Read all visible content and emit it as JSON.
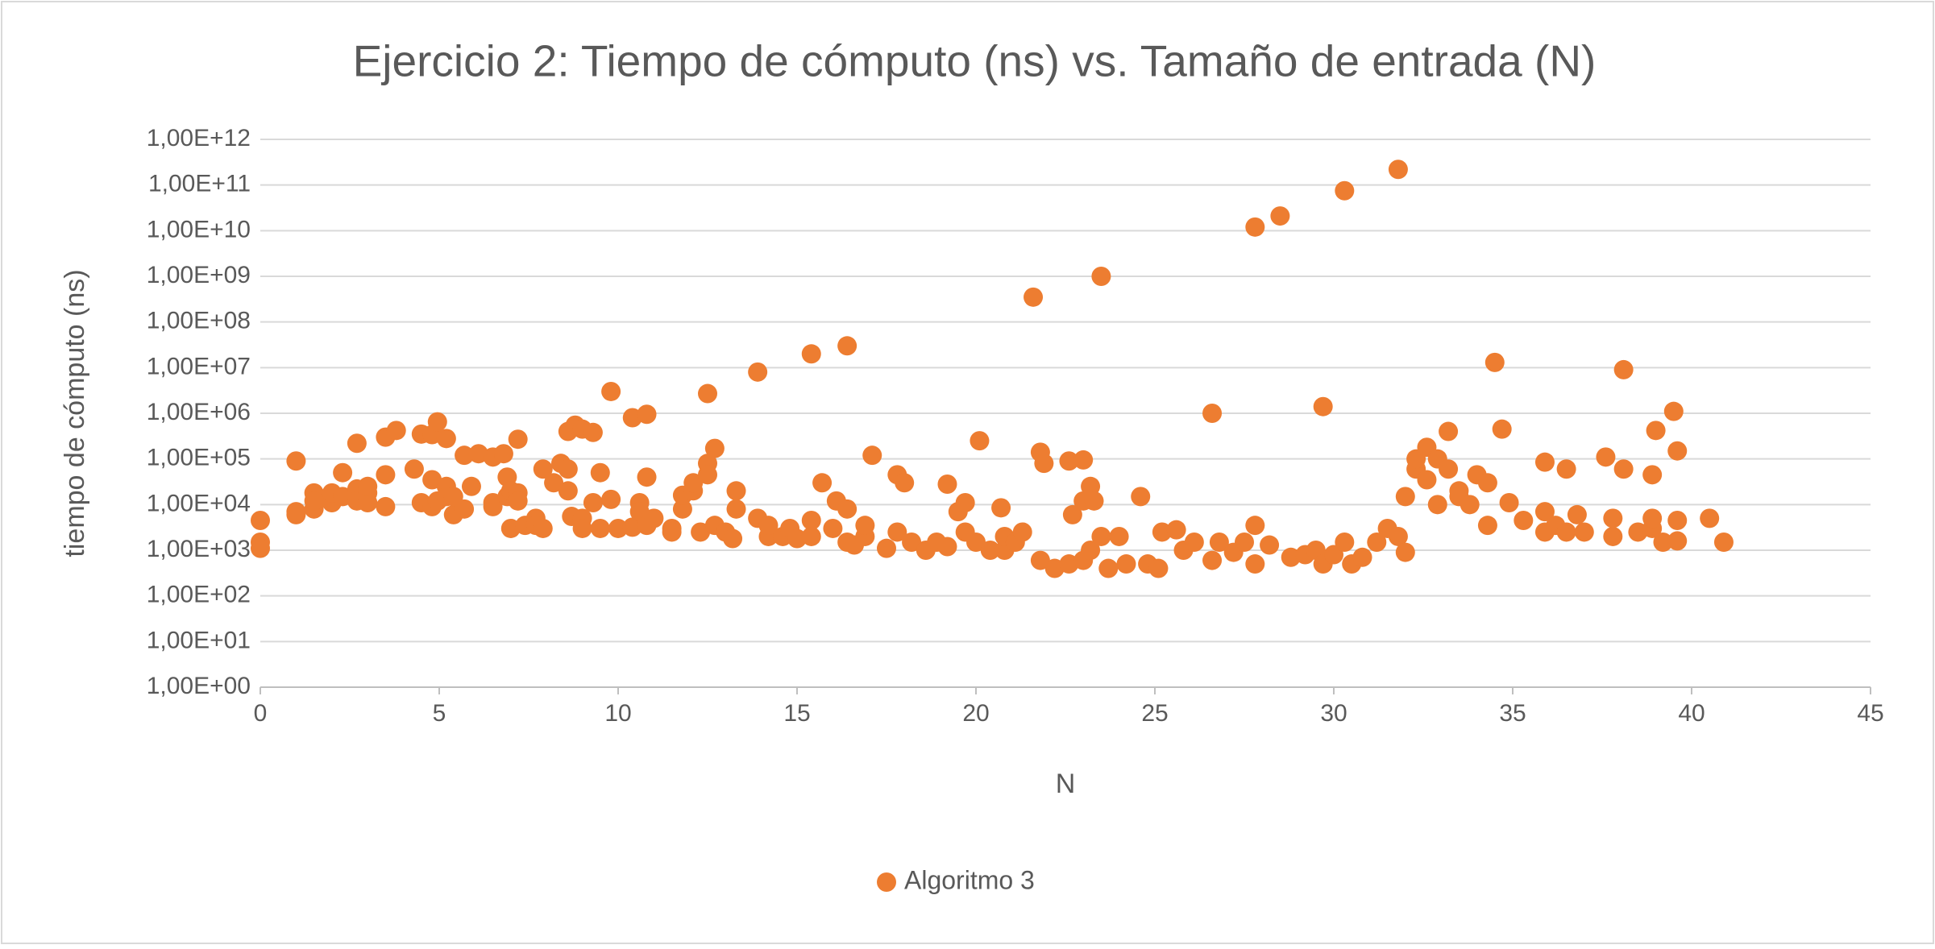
{
  "chart_data": {
    "type": "scatter",
    "title": "Ejercicio 2: Tiempo de cómputo (ns) vs. Tamaño de entrada (N)",
    "x_label": "N",
    "y_label": "tiempo de cómputo (ns)",
    "log_y": true,
    "grid": true,
    "legend": "bottom",
    "xlim": [
      0,
      45
    ],
    "xticks": [
      0,
      5,
      10,
      15,
      20,
      25,
      30,
      35,
      40,
      45
    ],
    "ylim": [
      1,
      1000000000000
    ],
    "yticks": [
      {
        "value": 1,
        "label": "1,00E+00"
      },
      {
        "value": 10,
        "label": "1,00E+01"
      },
      {
        "value": 100,
        "label": "1,00E+02"
      },
      {
        "value": 1000,
        "label": "1,00E+03"
      },
      {
        "value": 10000,
        "label": "1,00E+04"
      },
      {
        "value": 100000,
        "label": "1,00E+05"
      },
      {
        "value": 1000000,
        "label": "1,00E+06"
      },
      {
        "value": 10000000,
        "label": "1,00E+07"
      },
      {
        "value": 100000000,
        "label": "1,00E+08"
      },
      {
        "value": 1000000000,
        "label": "1,00E+09"
      },
      {
        "value": 10000000000,
        "label": "1,00E+10"
      },
      {
        "value": 100000000000,
        "label": "1,00E+11"
      },
      {
        "value": 1000000000000,
        "label": "1,00E+12"
      }
    ],
    "x": [
      0,
      0,
      0,
      1,
      1,
      1,
      1.5,
      1.5,
      1.5,
      2,
      2,
      2,
      2.3,
      2.3,
      2.7,
      2.7,
      2.7,
      3,
      3,
      3,
      3.5,
      3.5,
      3.5,
      3.8,
      4.3,
      4.5,
      4.5,
      4.8,
      4.8,
      4.8,
      4.95,
      4.95,
      5.2,
      5.2,
      5.2,
      5.4,
      5.4,
      5.7,
      5.7,
      5.9,
      6.1,
      6.5,
      6.5,
      6.5,
      6.8,
      6.9,
      6.9,
      7,
      7,
      7.2,
      7.2,
      7.2,
      7.4,
      7.7,
      7.7,
      7.9,
      7.9,
      8.2,
      8.4,
      8.6,
      8.6,
      8.6,
      8.7,
      8.8,
      9,
      9,
      9,
      9.3,
      9.3,
      9.5,
      9.5,
      9.8,
      9.8,
      10,
      10.4,
      10.4,
      10.6,
      10.6,
      10.8,
      10.8,
      10.8,
      11,
      11.5,
      11.5,
      11.8,
      11.8,
      12.1,
      12.1,
      12.3,
      12.5,
      12.5,
      12.5,
      12.7,
      12.7,
      13,
      13.2,
      13.3,
      13.3,
      13.9,
      13.9,
      14.2,
      14.2,
      14.6,
      14.8,
      15,
      15.4,
      15.4,
      15.4,
      15.7,
      16,
      16.1,
      16.4,
      16.4,
      16.4,
      16.6,
      16.9,
      16.9,
      17.1,
      17.5,
      17.8,
      17.8,
      18,
      18.2,
      18.6,
      18.9,
      19.2,
      19.2,
      19.5,
      19.7,
      19.7,
      20,
      20.1,
      20.4,
      20.7,
      20.8,
      20.8,
      21.1,
      21.3,
      21.6,
      21.8,
      21.8,
      21.9,
      22.2,
      22.6,
      22.6,
      22.7,
      23,
      23,
      23,
      23.2,
      23.2,
      23.3,
      23.5,
      23.5,
      23.7,
      24,
      24.2,
      24.6,
      24.8,
      25.1,
      25.2,
      25.6,
      25.8,
      26.1,
      26.6,
      26.6,
      26.8,
      27.2,
      27.5,
      27.8,
      27.8,
      27.8,
      28.2,
      28.5,
      28.8,
      29.2,
      29.5,
      29.7,
      29.7,
      30,
      30.3,
      30.3,
      30.5,
      30.8,
      31.2,
      31.5,
      31.8,
      31.8,
      32,
      32,
      32.3,
      32.3,
      32.6,
      32.6,
      32.9,
      32.9,
      33.2,
      33.2,
      33.5,
      33.5,
      33.8,
      34,
      34.3,
      34.3,
      34.5,
      34.7,
      34.9,
      35.3,
      35.9,
      35.9,
      35.9,
      36.2,
      36.5,
      36.5,
      36.8,
      37,
      37.6,
      37.8,
      37.8,
      38.1,
      38.1,
      38.5,
      38.9,
      38.9,
      38.9,
      39,
      39.2,
      39.5,
      39.6,
      39.6,
      39.6,
      40.5,
      40.9
    ],
    "series": [
      {
        "name": "Algoritmo 3",
        "color": "#ed7d31",
        "values": [
          4500,
          1500,
          1100,
          90000,
          7000,
          6000,
          18000,
          8000,
          12000,
          14000,
          11000,
          18000,
          50000,
          15000,
          22000,
          12000,
          220000,
          18000,
          11000,
          25000,
          45000,
          300000,
          9000,
          420000,
          60000,
          350000,
          11000,
          9000,
          35000,
          340000,
          650000,
          12000,
          25000,
          15000,
          280000,
          6000,
          15000,
          120000,
          8000,
          25000,
          130000,
          110000,
          9000,
          11000,
          130000,
          40000,
          15000,
          3000,
          20000,
          270000,
          18000,
          12000,
          3500,
          5000,
          3500,
          3000,
          60000,
          30000,
          80000,
          60000,
          20000,
          400000,
          5500,
          550000,
          450000,
          5000,
          3000,
          380000,
          11000,
          3000,
          50000,
          13000,
          3000000,
          3000,
          800000,
          3200,
          11000,
          7000,
          950000,
          40000,
          3500,
          5000,
          3000,
          2500,
          8000,
          16000,
          20000,
          30000,
          2500,
          80000,
          2700000,
          45000,
          170000,
          3500,
          2500,
          1800,
          20000,
          8000,
          5000,
          8000000,
          2000,
          3500,
          2000,
          3000,
          1800,
          2000,
          4500,
          20000000,
          30000,
          3000,
          12000,
          8000,
          1500,
          30000000,
          1300,
          2000,
          3500,
          120000,
          1100,
          45000,
          2500,
          30000,
          1500,
          1000,
          1500,
          1200,
          28000,
          7000,
          11000,
          2500,
          1500,
          250000,
          1000,
          8500,
          1000,
          2000,
          1500,
          2500,
          350000000,
          600,
          140000,
          80000,
          400,
          500,
          90000,
          6000,
          12000,
          600,
          95000,
          1000,
          25000,
          12000,
          2000,
          1000000000,
          400,
          2000,
          500,
          15000,
          500,
          400,
          2500,
          2800,
          1000,
          1500,
          600,
          1000000,
          1500,
          900,
          1500,
          3500,
          12000000000,
          500,
          1300,
          21000000000,
          700,
          800,
          1000,
          1400000,
          500,
          800,
          1500,
          75000000000,
          500,
          700,
          1500,
          3000,
          220000000000,
          2000,
          900,
          15000,
          60000,
          100000,
          180000,
          35000,
          100000,
          10000,
          400000,
          60000,
          20000,
          15000,
          10000,
          45000,
          30000,
          3500,
          13000000,
          450000,
          11000,
          4500,
          85000,
          7000,
          2500,
          3500,
          60000,
          2500,
          6000,
          2500,
          110000,
          5000,
          2000,
          60000,
          9000000,
          2500,
          45000,
          3000,
          5000,
          420000,
          1500,
          1100000,
          150000,
          4500,
          1600,
          5000,
          1500
        ]
      }
    ]
  }
}
